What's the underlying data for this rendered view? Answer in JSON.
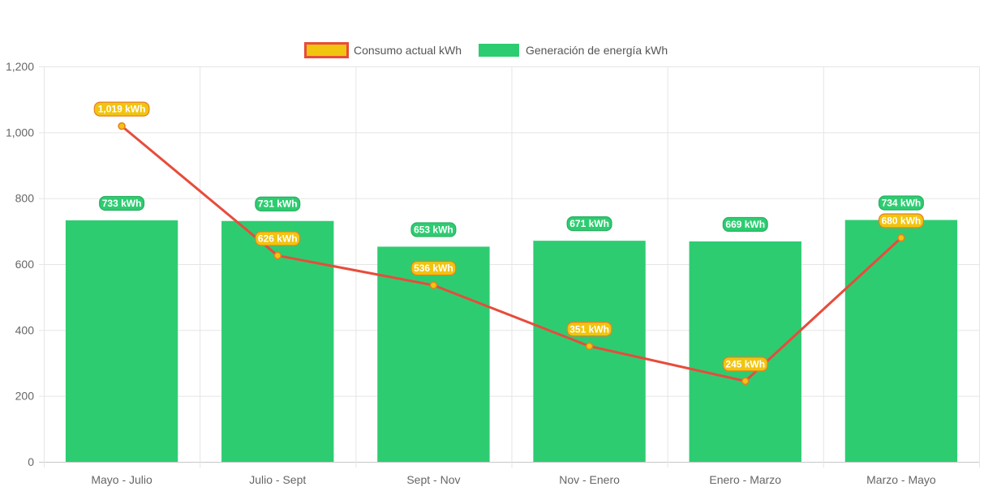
{
  "chart_data": {
    "type": "bar",
    "categories": [
      "Mayo - Julio",
      "Julio - Sept",
      "Sept - Nov",
      "Nov - Enero",
      "Enero - Marzo",
      "Marzo - Mayo"
    ],
    "series": [
      {
        "name": "Consumo actual kWh",
        "type": "line",
        "values": [
          1019,
          626,
          536,
          351,
          245,
          680
        ],
        "labels": [
          "1,019 kWh",
          "626 kWh",
          "536 kWh",
          "351 kWh",
          "245 kWh",
          "680 kWh"
        ],
        "color": "#e74c3c",
        "fill_color": "#f1c40f"
      },
      {
        "name": "Generación de energía kWh",
        "type": "bar",
        "values": [
          733,
          731,
          653,
          671,
          669,
          734
        ],
        "labels": [
          "733 kWh",
          "731 kWh",
          "653 kWh",
          "671 kWh",
          "669 kWh",
          "734 kWh"
        ],
        "color": "#2ecc71"
      }
    ],
    "y_ticks": [
      "0",
      "200",
      "400",
      "600",
      "800",
      "1,000",
      "1,200"
    ],
    "ylim": [
      0,
      1200
    ],
    "grid": true,
    "legend_position": "top"
  }
}
